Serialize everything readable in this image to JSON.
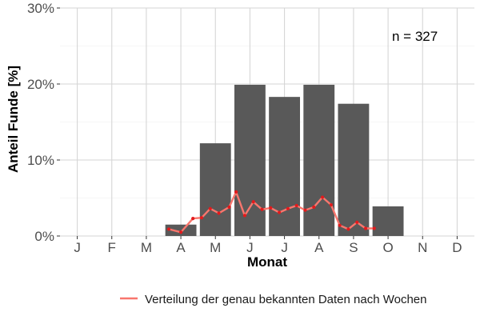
{
  "chart_data": {
    "type": "bar",
    "categories": [
      "J",
      "F",
      "M",
      "A",
      "M",
      "J",
      "J",
      "A",
      "S",
      "O",
      "N",
      "D"
    ],
    "values": [
      0,
      0,
      0,
      1.5,
      12.2,
      19.9,
      18.3,
      19.9,
      17.4,
      3.9,
      0,
      0
    ],
    "xlabel": "Monat",
    "ylabel": "Anteil Funde [%]",
    "ylim": [
      0,
      30
    ],
    "yticks": [
      0,
      10,
      20,
      30
    ],
    "ytick_labels": [
      "0%",
      "10%",
      "20%",
      "30%"
    ],
    "annotation": "n = 327",
    "grid": true,
    "legend_position": "bottom-right",
    "bar_color": "#595959",
    "line_series": {
      "name": "Verteilung der genau bekannten Daten nach Wochen",
      "color": "#f8766d",
      "point_color": "#e31a1c",
      "x": [
        3.15,
        3.5,
        3.85,
        4.1,
        4.35,
        4.6,
        4.9,
        5.1,
        5.35,
        5.6,
        5.85,
        6.1,
        6.35,
        6.6,
        6.85,
        7.1,
        7.35,
        7.6,
        7.85,
        8.1,
        8.35,
        8.6,
        8.85,
        9.1
      ],
      "y": [
        0.9,
        0.5,
        2.3,
        2.4,
        3.6,
        3.0,
        3.8,
        5.8,
        2.7,
        4.5,
        3.5,
        3.7,
        3.1,
        3.6,
        4.0,
        3.4,
        3.8,
        5.1,
        4.1,
        1.4,
        0.9,
        1.8,
        1.0,
        1.0
      ]
    }
  }
}
